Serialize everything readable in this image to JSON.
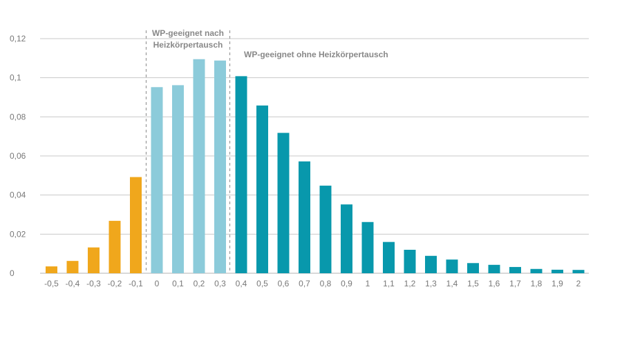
{
  "chart_data": {
    "type": "bar",
    "title": "",
    "xlabel": "",
    "ylabel": "",
    "ylim": [
      0,
      0.12
    ],
    "grid": true,
    "legend": "none",
    "y_ticks": [
      "0",
      "0,02",
      "0,04",
      "0,06",
      "0,08",
      "0,1",
      "0,12"
    ],
    "y_tick_values": [
      0,
      0.02,
      0.04,
      0.06,
      0.08,
      0.1,
      0.12
    ],
    "categories": [
      "-0,5",
      "-0,4",
      "-0,3",
      "-0,2",
      "-0,1",
      "0",
      "0,1",
      "0,2",
      "0,3",
      "0,4",
      "0,5",
      "0,6",
      "0,7",
      "0,8",
      "0,9",
      "1",
      "1,1",
      "1,2",
      "1,3",
      "1,4",
      "1,5",
      "1,6",
      "1,7",
      "1,8",
      "1,9",
      "2"
    ],
    "values": [
      0.0035,
      0.0063,
      0.0132,
      0.0268,
      0.0492,
      0.0952,
      0.0962,
      0.1095,
      0.1088,
      0.1008,
      0.0858,
      0.0718,
      0.0572,
      0.0448,
      0.0352,
      0.0262,
      0.016,
      0.012,
      0.0089,
      0.007,
      0.0052,
      0.0043,
      0.0032,
      0.0022,
      0.0018,
      0.0017
    ],
    "groups": [
      {
        "from": 0,
        "to": 4,
        "color": "#F0A71C"
      },
      {
        "from": 5,
        "to": 8,
        "color": "#8CCBDA"
      },
      {
        "from": 9,
        "to": 25,
        "color": "#0898AC"
      }
    ],
    "annotations": {
      "region2_line1": "WP-geeignet nach",
      "region2_line2": "Heizkörpertausch",
      "region3": "WP-geeignet ohne Heizkörpertausch"
    }
  }
}
